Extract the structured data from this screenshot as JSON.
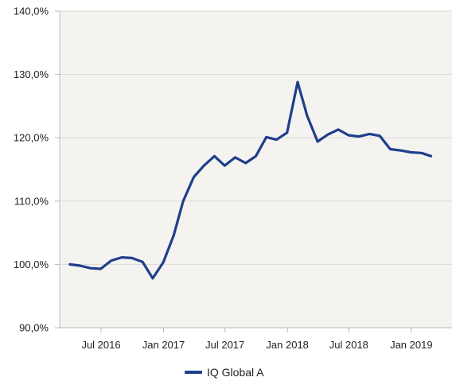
{
  "colors": {
    "plot_background": "#f4f3ef",
    "grid": "#d9d9d9",
    "axis": "#b8b8b8",
    "series_line": "#1f3f8a"
  },
  "chart_data": {
    "type": "line",
    "title": "",
    "xlabel": "",
    "ylabel": "",
    "ylim": [
      90,
      140
    ],
    "xlim": [
      "2016-03-01",
      "2019-05-01"
    ],
    "y_ticks": [
      {
        "value": 90,
        "label": "90,0%"
      },
      {
        "value": 100,
        "label": "100,0%"
      },
      {
        "value": 110,
        "label": "110,0%"
      },
      {
        "value": 120,
        "label": "120,0%"
      },
      {
        "value": 130,
        "label": "130,0%"
      },
      {
        "value": 140,
        "label": "140,0%"
      }
    ],
    "x_ticks": [
      {
        "value": "2016-07-01",
        "label": "Jul 2016"
      },
      {
        "value": "2017-01-01",
        "label": "Jan 2017"
      },
      {
        "value": "2017-07-01",
        "label": "Jul 2017"
      },
      {
        "value": "2018-01-01",
        "label": "Jan 2018"
      },
      {
        "value": "2018-07-01",
        "label": "Jul 2018"
      },
      {
        "value": "2019-01-01",
        "label": "Jan 2019"
      }
    ],
    "grid": true,
    "legend_position": "bottom-center",
    "series": [
      {
        "name": "IQ Global A",
        "points": [
          [
            "2016-03-31",
            100.0
          ],
          [
            "2016-04-30",
            99.8
          ],
          [
            "2016-05-31",
            99.4
          ],
          [
            "2016-06-30",
            99.3
          ],
          [
            "2016-07-31",
            100.6
          ],
          [
            "2016-08-31",
            101.1
          ],
          [
            "2016-09-30",
            101.0
          ],
          [
            "2016-10-31",
            100.4
          ],
          [
            "2016-11-30",
            97.8
          ],
          [
            "2016-12-31",
            100.3
          ],
          [
            "2017-01-31",
            104.6
          ],
          [
            "2017-02-28",
            110.0
          ],
          [
            "2017-03-31",
            113.8
          ],
          [
            "2017-04-30",
            115.6
          ],
          [
            "2017-05-31",
            117.1
          ],
          [
            "2017-06-30",
            115.6
          ],
          [
            "2017-07-31",
            116.9
          ],
          [
            "2017-08-31",
            116.0
          ],
          [
            "2017-09-30",
            117.1
          ],
          [
            "2017-10-31",
            120.1
          ],
          [
            "2017-11-30",
            119.7
          ],
          [
            "2017-12-31",
            120.8
          ],
          [
            "2018-01-31",
            128.8
          ],
          [
            "2018-02-28",
            123.5
          ],
          [
            "2018-03-31",
            119.4
          ],
          [
            "2018-04-30",
            120.5
          ],
          [
            "2018-05-31",
            121.3
          ],
          [
            "2018-06-30",
            120.4
          ],
          [
            "2018-07-31",
            120.2
          ],
          [
            "2018-08-31",
            120.6
          ],
          [
            "2018-09-30",
            120.3
          ],
          [
            "2018-10-31",
            118.2
          ],
          [
            "2018-11-30",
            118.0
          ],
          [
            "2018-12-31",
            117.7
          ],
          [
            "2019-01-31",
            117.6
          ],
          [
            "2019-02-28",
            117.1
          ]
        ]
      }
    ]
  }
}
